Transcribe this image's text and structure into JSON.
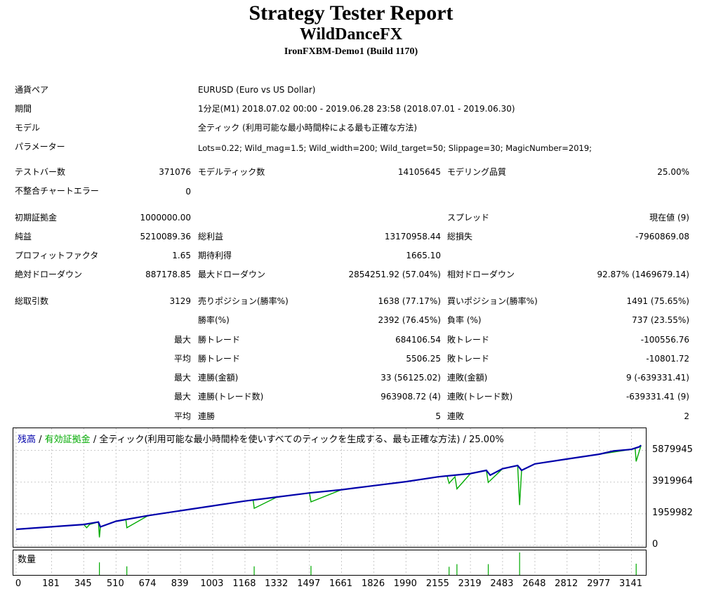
{
  "header": {
    "title": "Strategy Tester Report",
    "subtitle": "WildDanceFX",
    "server": "IronFXBM-Demo1 (Build 1170)"
  },
  "info": {
    "symbol_label": "通貨ペア",
    "symbol_value": "EURUSD (Euro vs US Dollar)",
    "period_label": "期間",
    "period_value": "1分足(M1) 2018.07.02 00:00 - 2019.06.28 23:58 (2018.07.01 - 2019.06.30)",
    "model_label": "モデル",
    "model_value": "全ティック (利用可能な最小時間枠による最も正確な方法)",
    "params_label": "パラメーター",
    "params_value": "Lots=0.22; Wild_mag=1.5; Wild_width=200; Wild_target=50; Slippage=30; MagicNumber=2019;"
  },
  "stats": {
    "bars_label": "テストバー数",
    "bars_value": "371076",
    "ticks_label": "モデルティック数",
    "ticks_value": "14105645",
    "quality_label": "モデリング品質",
    "quality_value": "25.00%",
    "mismatch_label": "不整合チャートエラー",
    "mismatch_value": "0",
    "deposit_label": "初期証拠金",
    "deposit_value": "1000000.00",
    "spread_label": "スプレッド",
    "spread_value": "現在値 (9)",
    "net_label": "純益",
    "net_value": "5210089.36",
    "gross_profit_label": "総利益",
    "gross_profit_value": "13170958.44",
    "gross_loss_label": "総損失",
    "gross_loss_value": "-7960869.08",
    "pf_label": "プロフィットファクタ",
    "pf_value": "1.65",
    "expected_label": "期待利得",
    "expected_value": "1665.10",
    "abs_dd_label": "絶対ドローダウン",
    "abs_dd_value": "887178.85",
    "max_dd_label": "最大ドローダウン",
    "max_dd_value": "2854251.92 (57.04%)",
    "rel_dd_label": "相対ドローダウン",
    "rel_dd_value": "92.87% (1469679.14)",
    "total_trades_label": "総取引数",
    "total_trades_value": "3129",
    "short_label": "売りポジション(勝率%)",
    "short_value": "1638 (77.17%)",
    "long_label": "買いポジション(勝率%)",
    "long_value": "1491 (75.65%)",
    "win_rate_label": "勝率(%)",
    "win_rate_value": "2392 (76.45%)",
    "loss_rate_label": "負率 (%)",
    "loss_rate_value": "737 (23.55%)",
    "max_prefix": "最大",
    "avg_prefix": "平均",
    "largest_win_label": "勝トレード",
    "largest_win_value": "684106.54",
    "largest_loss_label": "敗トレード",
    "largest_loss_value": "-100556.76",
    "avg_win_label": "勝トレード",
    "avg_win_value": "5506.25",
    "avg_loss_label": "敗トレード",
    "avg_loss_value": "-10801.72",
    "max_consec_wins_label": "連勝(金額)",
    "max_consec_wins_value": "33 (56125.02)",
    "max_consec_losses_label": "連敗(金額)",
    "max_consec_losses_value": "9 (-639331.41)",
    "max_consec_profit_label": "連勝(トレード数)",
    "max_consec_profit_value": "963908.72 (4)",
    "max_consec_loss_label": "連敗(トレード数)",
    "max_consec_loss_value": "-639331.41 (9)",
    "avg_consec_wins_label": "連勝",
    "avg_consec_wins_value": "5",
    "avg_consec_losses_label": "連敗",
    "avg_consec_losses_value": "2"
  },
  "chart_legend": {
    "balance": "残高",
    "sep1": " / ",
    "equity": "有効証拠金",
    "rest": " / 全ティック(利用可能な最小時間枠を使いすべてのティックを生成する、最も正確な方法) / 25.00%"
  },
  "volume_title": "数量",
  "colors": {
    "balance": "#0000aa",
    "equity": "#00aa00",
    "grid": "#c8c8c8"
  },
  "chart_data": {
    "type": "line",
    "ylim": [
      0,
      6300000
    ],
    "xlim": [
      0,
      3200
    ],
    "y_ticks": [
      0,
      1959982,
      3919964,
      5879945
    ],
    "y_tick_labels": [
      "0",
      "1959982",
      "3919964",
      "5879945"
    ],
    "x_ticks": [
      0,
      181,
      345,
      510,
      674,
      839,
      1003,
      1168,
      1332,
      1497,
      1661,
      1826,
      1990,
      2155,
      2319,
      2483,
      2648,
      2812,
      2977,
      3141
    ],
    "x_tick_labels": [
      "0",
      "181",
      "345",
      "510",
      "674",
      "839",
      "1003",
      "1168",
      "1332",
      "1497",
      "1661",
      "1826",
      "1990",
      "2155",
      "2319",
      "2483",
      "2648",
      "2812",
      "2977",
      "3141"
    ],
    "series": [
      {
        "name": "残高",
        "x": [
          0,
          345,
          420,
          430,
          510,
          674,
          839,
          1003,
          1168,
          1332,
          1497,
          1661,
          1826,
          1990,
          2155,
          2319,
          2400,
          2420,
          2483,
          2560,
          2580,
          2648,
          2812,
          2977,
          3050,
          3141,
          3180,
          3190
        ],
        "values": [
          1000000,
          1300000,
          1450000,
          1150000,
          1500000,
          1850000,
          2150000,
          2450000,
          2750000,
          3000000,
          3250000,
          3450000,
          3700000,
          3950000,
          4250000,
          4450000,
          4650000,
          4350000,
          4750000,
          4950000,
          4650000,
          5050000,
          5350000,
          5650000,
          5850000,
          5950000,
          6100000,
          6200000
        ]
      },
      {
        "name": "有効証拠金",
        "x": [
          0,
          345,
          360,
          375,
          420,
          425,
          430,
          510,
          560,
          565,
          674,
          839,
          1003,
          1168,
          1210,
          1215,
          1332,
          1497,
          1505,
          1661,
          1826,
          1990,
          2155,
          2200,
          2210,
          2240,
          2250,
          2319,
          2400,
          2410,
          2483,
          2560,
          2570,
          2580,
          2648,
          2812,
          2977,
          3141,
          3160,
          3165,
          3190
        ],
        "values": [
          1000000,
          1300000,
          1100000,
          1300000,
          1450000,
          500000,
          1150000,
          1500000,
          1600000,
          1100000,
          1850000,
          2150000,
          2450000,
          2750000,
          2800000,
          2300000,
          3000000,
          3250000,
          2700000,
          3450000,
          3700000,
          3950000,
          4250000,
          4300000,
          3850000,
          4250000,
          3500000,
          4450000,
          4650000,
          3900000,
          4750000,
          4950000,
          2500000,
          4650000,
          5050000,
          5350000,
          5650000,
          5950000,
          6000000,
          5200000,
          6200000
        ]
      }
    ]
  }
}
